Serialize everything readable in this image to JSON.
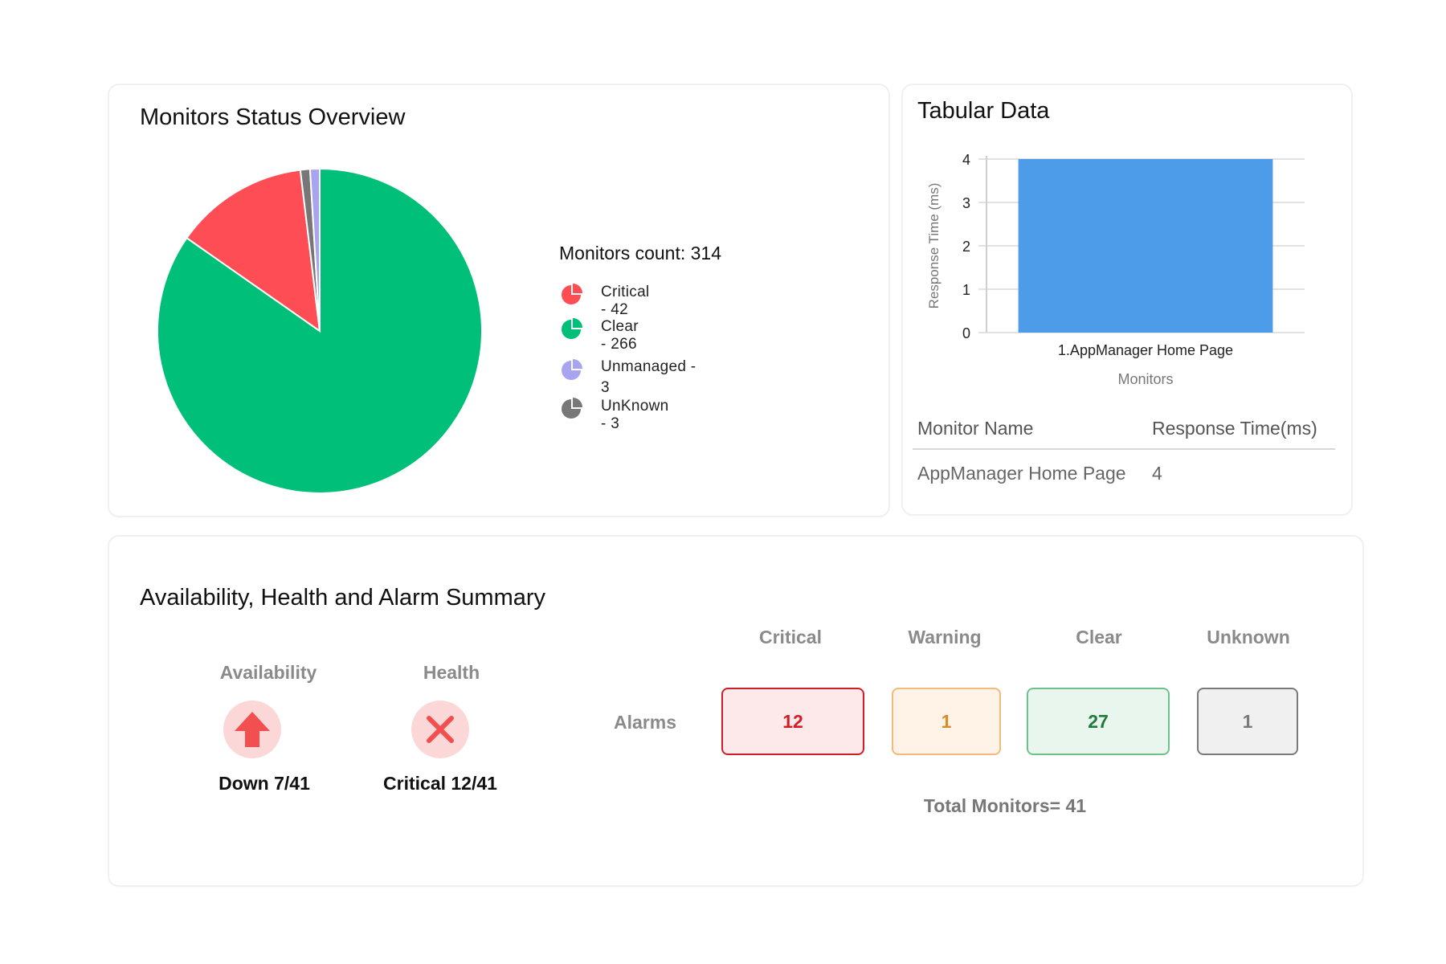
{
  "overview": {
    "title": "Monitors Status Overview",
    "monitors_count_label": "Monitors count: 314",
    "legend": [
      {
        "label": "Critical - 42",
        "color": "#ff4d55",
        "icon": "pie-slice-icon"
      },
      {
        "label": "Clear - 266",
        "color": "#00bf78",
        "icon": "pie-slice-icon"
      },
      {
        "label": "Unmanaged - 3",
        "color": "#a8a4ef",
        "icon": "pie-slice-icon"
      },
      {
        "label": "UnKnown - 3",
        "color": "#777777",
        "icon": "pie-slice-icon"
      }
    ]
  },
  "tabular": {
    "title": "Tabular Data",
    "columns": [
      "Monitor Name",
      "Response Time(ms)"
    ],
    "rows": [
      [
        "AppManager Home Page",
        "4"
      ]
    ]
  },
  "chart_data": [
    {
      "type": "pie",
      "title": "",
      "categories": [
        "Critical",
        "Clear",
        "Unmanaged",
        "UnKnown"
      ],
      "values": [
        42,
        266,
        3,
        3
      ],
      "colors": [
        "#ff4d55",
        "#00bf78",
        "#a8a4ef",
        "#777777"
      ]
    },
    {
      "type": "bar",
      "title": "",
      "categories": [
        "1.AppManager Home Page"
      ],
      "values": [
        4
      ],
      "xlabel": "Monitors",
      "ylabel": "Response Time (ms)",
      "ylim": [
        0,
        4
      ],
      "yticks": [
        "0",
        "1",
        "2",
        "3",
        "4"
      ],
      "color": "#4d9ce9",
      "grid": true
    }
  ],
  "summary": {
    "title": "Availability, Health and Alarm Summary",
    "availability": {
      "label": "Availability",
      "value": "Down 7/41",
      "icon": "arrow-up-icon"
    },
    "health": {
      "label": "Health",
      "value": "Critical 12/41",
      "icon": "close-icon"
    },
    "alarms_label": "Alarms",
    "alarms": [
      {
        "label": "Critical",
        "value": "12",
        "bg": "#fde9ea",
        "border": "#d01f24",
        "text": "#d01f24"
      },
      {
        "label": "Warning",
        "value": "1",
        "bg": "#fff3e7",
        "border": "#f5b97a",
        "text": "#d98a2a"
      },
      {
        "label": "Clear",
        "value": "27",
        "bg": "#e9f6ee",
        "border": "#6fc18c",
        "text": "#1f7a3c"
      },
      {
        "label": "Unknown",
        "value": "1",
        "bg": "#f0f0f0",
        "border": "#7a7a7a",
        "text": "#7a7a7a"
      }
    ],
    "total_label": "Total Monitors= 41"
  }
}
